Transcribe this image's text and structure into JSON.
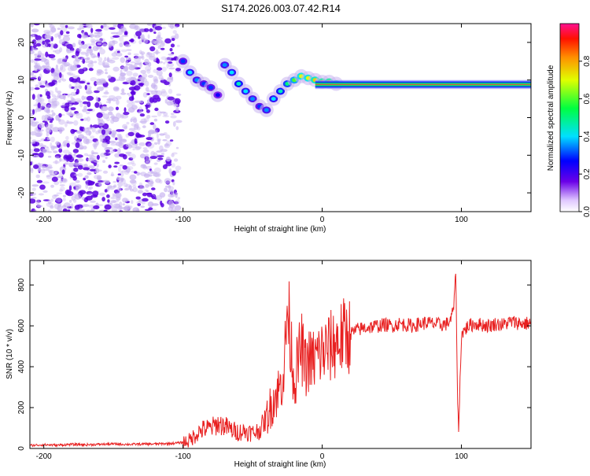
{
  "title": "S174.2026.003.07.42.R14",
  "colors": {
    "snr_line": "#e82020",
    "scatter_dense": "#5a00e0",
    "scatter_light": "#c8b4f0",
    "ridge": "#ff3040"
  },
  "chart_data": [
    {
      "type": "heatmap",
      "xlabel": "Height of straight line (km)",
      "ylabel": "Frequency (Hz)",
      "xlim": [
        -210,
        150
      ],
      "ylim": [
        -25,
        25
      ],
      "xticks": [
        -200,
        -100,
        0,
        100
      ],
      "yticks": [
        -20,
        -10,
        0,
        10,
        20
      ],
      "grid": false,
      "colorbar": {
        "label": "Normalized spectral amplitude",
        "range": [
          0,
          1
        ],
        "ticks": [
          0.0,
          0.2,
          0.4,
          0.6,
          0.8
        ],
        "colormap": "rainbow"
      },
      "features": {
        "noise_region_x": [
          -210,
          -103
        ],
        "ridge_x": [
          -5,
          150
        ],
        "ridge_frequency_hz": 8.8,
        "trace_points": [
          {
            "x": -100,
            "y": 15,
            "v": 0.3
          },
          {
            "x": -95,
            "y": 12,
            "v": 0.4
          },
          {
            "x": -90,
            "y": 10,
            "v": 0.35
          },
          {
            "x": -85,
            "y": 9,
            "v": 0.3
          },
          {
            "x": -80,
            "y": 8,
            "v": 0.3
          },
          {
            "x": -75,
            "y": 6,
            "v": 0.25
          },
          {
            "x": -70,
            "y": 14,
            "v": 0.35
          },
          {
            "x": -65,
            "y": 12,
            "v": 0.4
          },
          {
            "x": -60,
            "y": 9,
            "v": 0.45
          },
          {
            "x": -55,
            "y": 7,
            "v": 0.4
          },
          {
            "x": -50,
            "y": 5,
            "v": 0.35
          },
          {
            "x": -45,
            "y": 3,
            "v": 0.3
          },
          {
            "x": -40,
            "y": 2,
            "v": 0.35
          },
          {
            "x": -35,
            "y": 5,
            "v": 0.4
          },
          {
            "x": -30,
            "y": 7,
            "v": 0.45
          },
          {
            "x": -25,
            "y": 9,
            "v": 0.5
          },
          {
            "x": -20,
            "y": 10,
            "v": 0.6
          },
          {
            "x": -15,
            "y": 11,
            "v": 0.7
          },
          {
            "x": -10,
            "y": 10.5,
            "v": 0.7
          },
          {
            "x": -5,
            "y": 10,
            "v": 0.75
          },
          {
            "x": 0,
            "y": 9.5,
            "v": 0.8
          },
          {
            "x": 5,
            "y": 9.5,
            "v": 0.8
          },
          {
            "x": 10,
            "y": 9,
            "v": 0.8
          }
        ]
      }
    },
    {
      "type": "line",
      "xlabel": "Height of straight line (km)",
      "ylabel": "SNR (10 * v/v)",
      "xlim": [
        -210,
        150
      ],
      "ylim": [
        0,
        920
      ],
      "xticks": [
        -200,
        -100,
        0,
        100
      ],
      "yticks": [
        0,
        200,
        400,
        600,
        800
      ],
      "grid": false,
      "series": [
        {
          "x": [
            -210,
            -200,
            -190,
            -180,
            -170,
            -160,
            -150,
            -140,
            -130,
            -120,
            -110,
            -105,
            -100,
            -95,
            -90,
            -85,
            -80,
            -75,
            -70,
            -65,
            -60,
            -55,
            -50,
            -45,
            -40,
            -35,
            -30,
            -27,
            -25,
            -22,
            -20,
            -18,
            -15,
            -12,
            -10,
            -8,
            -5,
            -3,
            0,
            5,
            10,
            15,
            20,
            25,
            30,
            35,
            40,
            45,
            50,
            55,
            60,
            65,
            70,
            75,
            80,
            85,
            90,
            93,
            95,
            96,
            97,
            98,
            100,
            105,
            110,
            115,
            120,
            125,
            130,
            135,
            140,
            145,
            150
          ],
          "values": [
            15,
            18,
            16,
            20,
            18,
            20,
            22,
            20,
            21,
            22,
            24,
            26,
            30,
            40,
            75,
            95,
            100,
            120,
            110,
            90,
            80,
            85,
            75,
            90,
            150,
            240,
            300,
            420,
            700,
            480,
            320,
            400,
            500,
            390,
            440,
            420,
            440,
            455,
            470,
            490,
            520,
            545,
            560,
            580,
            590,
            595,
            600,
            605,
            600,
            610,
            605,
            600,
            610,
            615,
            610,
            605,
            610,
            640,
            720,
            900,
            330,
            70,
            560,
            600,
            610,
            605,
            600,
            610,
            605,
            620,
            615,
            610,
            615
          ]
        }
      ]
    }
  ]
}
